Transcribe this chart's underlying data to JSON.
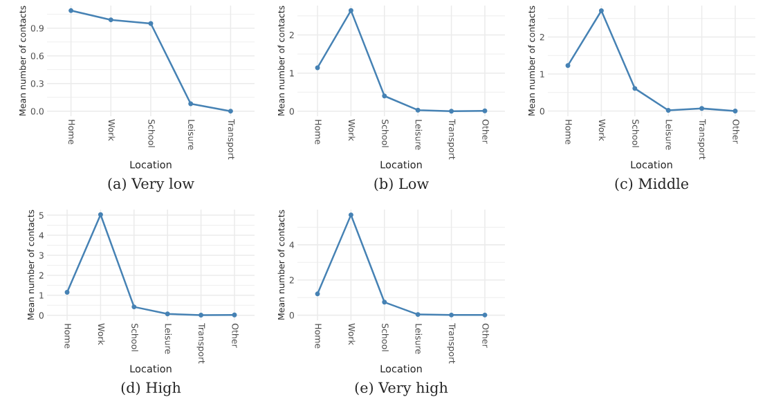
{
  "chart_data": [
    {
      "type": "line",
      "title": "(a) Very low",
      "xlabel": "Location",
      "ylabel": "Mean number of contacts",
      "categories": [
        "Home",
        "Work",
        "School",
        "Leisure",
        "Transport"
      ],
      "series": [
        {
          "color": "#4682b4",
          "values": [
            1.09,
            0.99,
            0.95,
            0.08,
            0.0
          ]
        }
      ],
      "ylim": [
        -0.055,
        1.145
      ],
      "yticks": [
        {
          "value": 0,
          "label": "0.0"
        },
        0.3,
        0.6,
        0.9
      ],
      "grid": true,
      "marker": "circle",
      "line_style": "solid"
    },
    {
      "type": "line",
      "title": "(b) Low",
      "xlabel": "Location",
      "ylabel": "Mean number of contacts",
      "categories": [
        "Home",
        "Work",
        "School",
        "Leisure",
        "Transport",
        "Other"
      ],
      "series": [
        {
          "color": "#4682b4",
          "values": [
            1.14,
            2.64,
            0.4,
            0.03,
            0.0,
            0.01
          ]
        }
      ],
      "ylim": [
        -0.13,
        2.77
      ],
      "yticks": [
        0,
        1,
        2
      ],
      "grid": true,
      "marker": "circle",
      "line_style": "solid"
    },
    {
      "type": "line",
      "title": "(c) Middle",
      "xlabel": "Location",
      "ylabel": "Mean number of contacts",
      "categories": [
        "Home",
        "Work",
        "School",
        "Leisure",
        "Transport",
        "Other"
      ],
      "series": [
        {
          "color": "#4682b4",
          "values": [
            1.23,
            2.71,
            0.61,
            0.02,
            0.07,
            0.0
          ]
        }
      ],
      "ylim": [
        -0.14,
        2.85
      ],
      "yticks": [
        0,
        1,
        2
      ],
      "grid": true,
      "marker": "circle",
      "line_style": "solid"
    },
    {
      "type": "line",
      "title": "(d) High",
      "xlabel": "Location",
      "ylabel": "Mean number of contacts",
      "categories": [
        "Home",
        "Work",
        "School",
        "Leisure",
        "Transport",
        "Other"
      ],
      "series": [
        {
          "color": "#4682b4",
          "values": [
            1.15,
            5.03,
            0.42,
            0.07,
            0.01,
            0.02
          ]
        }
      ],
      "ylim": [
        -0.25,
        5.28
      ],
      "yticks": [
        0,
        1,
        2,
        3,
        4,
        5
      ],
      "grid": true,
      "marker": "circle",
      "line_style": "solid"
    },
    {
      "type": "line",
      "title": "(e) Very high",
      "xlabel": "Location",
      "ylabel": "Mean number of contacts",
      "categories": [
        "Home",
        "Work",
        "School",
        "Leisure",
        "Transport",
        "Other"
      ],
      "series": [
        {
          "color": "#4682b4",
          "values": [
            1.21,
            5.7,
            0.74,
            0.04,
            0.01,
            0.01
          ]
        }
      ],
      "ylim": [
        -0.29,
        6.0
      ],
      "yticks": [
        0,
        2,
        4
      ],
      "grid": true,
      "marker": "circle",
      "line_style": "solid"
    }
  ]
}
